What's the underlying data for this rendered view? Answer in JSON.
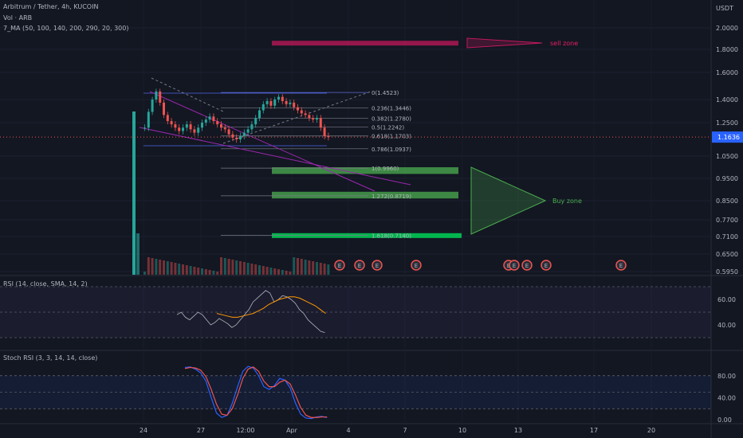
{
  "legend": {
    "symbol": "Arbitrum / Tether, 4h, KUCOIN",
    "volume": "Vol · ARB",
    "ma": "7_MA (50, 100, 140, 200, 290, 20, 300)"
  },
  "price_axis": {
    "unit": "USDT",
    "ticks": [
      {
        "label": "2.0000",
        "value": 2.0
      },
      {
        "label": "1.8000",
        "value": 1.8
      },
      {
        "label": "1.6000",
        "value": 1.6
      },
      {
        "label": "1.4000",
        "value": 1.4
      },
      {
        "label": "1.2500",
        "value": 1.25
      },
      {
        "label": "1.0500",
        "value": 1.05
      },
      {
        "label": "0.9500",
        "value": 0.95
      },
      {
        "label": "0.8500",
        "value": 0.85
      },
      {
        "label": "0.7700",
        "value": 0.77
      },
      {
        "label": "0.7100",
        "value": 0.71
      },
      {
        "label": "0.6500",
        "value": 0.65
      },
      {
        "label": "0.5950",
        "value": 0.595
      }
    ],
    "current_price": "1.1636",
    "current_value": 1.1636
  },
  "time_axis": {
    "ticks": [
      "24",
      "27",
      "12:00",
      "Apr",
      "4",
      "7",
      "10",
      "13",
      "17",
      "20"
    ]
  },
  "chart_data": {
    "type": "candlestick",
    "title": "Arbitrum / Tether, 4h, KUCOIN",
    "fibonacci": [
      {
        "label": "0(1.4523)",
        "value": 1.4523
      },
      {
        "label": "0.236(1.3446)",
        "value": 1.3446
      },
      {
        "label": "0.382(1.2780)",
        "value": 1.278
      },
      {
        "label": "0.5(1.2242)",
        "value": 1.2242
      },
      {
        "label": "0.618(1.1703)",
        "value": 1.1703
      },
      {
        "label": "0.786(1.0937)",
        "value": 1.0937
      },
      {
        "label": "1(0.9960)",
        "value": 0.996
      },
      {
        "label": "1.272(0.8719)",
        "value": 0.8719
      },
      {
        "label": "1.618(0.7140)",
        "value": 0.714
      }
    ],
    "zones": [
      {
        "label": "sell zone",
        "low": 1.84,
        "high": 1.88,
        "color": "#c2185b"
      },
      {
        "label": "Buy zone",
        "low": 0.97,
        "high": 1.0,
        "color": "#4caf50"
      },
      {
        "label": "",
        "low": 0.86,
        "high": 0.89,
        "color": "#4caf50"
      },
      {
        "label": "",
        "low": 0.705,
        "high": 0.722,
        "color": "#00c853"
      }
    ],
    "zone_labels": {
      "sell": "sell zone",
      "buy": "Buy zone"
    },
    "closes": [
      1.22,
      1.32,
      1.4,
      1.46,
      1.38,
      1.3,
      1.26,
      1.24,
      1.22,
      1.2,
      1.22,
      1.24,
      1.21,
      1.19,
      1.22,
      1.25,
      1.27,
      1.29,
      1.26,
      1.24,
      1.22,
      1.21,
      1.18,
      1.16,
      1.15,
      1.17,
      1.19,
      1.21,
      1.24,
      1.28,
      1.33,
      1.37,
      1.39,
      1.36,
      1.4,
      1.42,
      1.39,
      1.37,
      1.38,
      1.35,
      1.33,
      1.31,
      1.3,
      1.28,
      1.27,
      1.28,
      1.22,
      1.17,
      1.164
    ],
    "colors": {
      "up": "#26a69a",
      "down": "#ef5350"
    }
  },
  "rsi": {
    "title": "RSI (14, close, SMA, 14, 2)",
    "ticks": [
      {
        "label": "60.00",
        "value": 60
      },
      {
        "label": "40.00",
        "value": 40
      }
    ],
    "bands": {
      "upper": 70,
      "lower": 30
    },
    "values": [
      48,
      50,
      46,
      44,
      47,
      50,
      48,
      44,
      40,
      42,
      45,
      43,
      41,
      38,
      40,
      44,
      48,
      52,
      58,
      61,
      64,
      67,
      65,
      58,
      60,
      63,
      62,
      60,
      57,
      52,
      49,
      44,
      41,
      38,
      35,
      34
    ],
    "ma": [
      49,
      48,
      47,
      46,
      46,
      47,
      48,
      49,
      51,
      53,
      56,
      58,
      60,
      61,
      62,
      62,
      61,
      59,
      57,
      55,
      52,
      49
    ]
  },
  "stoch": {
    "title": "Stoch RSI (3, 3, 14, 14, close)",
    "ticks": [
      {
        "label": "80.00",
        "value": 80
      },
      {
        "label": "40.00",
        "value": 40
      },
      {
        "label": "0.00",
        "value": 0
      }
    ],
    "bands": {
      "upper": 80,
      "lower": 20
    },
    "k": [
      95,
      96,
      92,
      85,
      70,
      40,
      12,
      4,
      8,
      30,
      60,
      88,
      97,
      94,
      80,
      60,
      55,
      62,
      75,
      72,
      58,
      30,
      10,
      3,
      2,
      5,
      6,
      4
    ],
    "d": [
      93,
      95,
      94,
      90,
      78,
      55,
      28,
      10,
      8,
      20,
      45,
      75,
      92,
      96,
      88,
      70,
      60,
      60,
      68,
      72,
      65,
      45,
      22,
      8,
      4,
      4,
      5,
      5
    ]
  },
  "markers": {
    "label": "E",
    "count": 9
  }
}
